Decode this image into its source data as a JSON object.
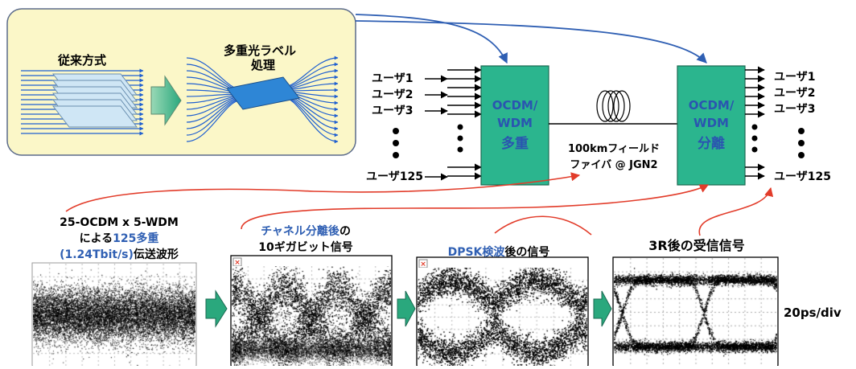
{
  "inset": {
    "conventional_label": "従来方式",
    "proposed_label_line1": "多重光ラベル",
    "proposed_label_line2": "処理"
  },
  "inputs": [
    "ユーザ1",
    "ユーザ2",
    "ユーザ3",
    "ユーザ125"
  ],
  "outputs": [
    "ユーザ1",
    "ユーザ2",
    "ユーザ3",
    "ユーザ125"
  ],
  "mux_box": {
    "line1": "OCDM/",
    "line2": "WDM",
    "line3": "多重"
  },
  "demux_box": {
    "line1": "OCDM/",
    "line2": "WDM",
    "line3": "分離"
  },
  "fiber": {
    "line1": "100kmフィールド",
    "line2": "ファイバ @ JGN2"
  },
  "captions": {
    "transmit_line1": "25-OCDM x 5-WDM",
    "transmit_line2_pre": "による",
    "transmit_line2_hl": "125多重",
    "transmit_line3_hl": "(1.24Tbit/s)",
    "transmit_line3_post": "伝送波形",
    "demux_hl": "チャネル分離後",
    "demux_post": "の",
    "demux_line2": "10ギガビット信号",
    "dpsk_hl": "DPSK検波",
    "dpsk_post": "後の信号",
    "regen": "3R後の受信信号"
  },
  "time_scale": "20ps/div",
  "colors": {
    "inset_fill": "#fbf7c8",
    "box_fill": "#2bb58e",
    "blue_arrow": "#2f5fb3",
    "red_arrow": "#e23c2a",
    "step_arrow": "#2aa87d"
  }
}
